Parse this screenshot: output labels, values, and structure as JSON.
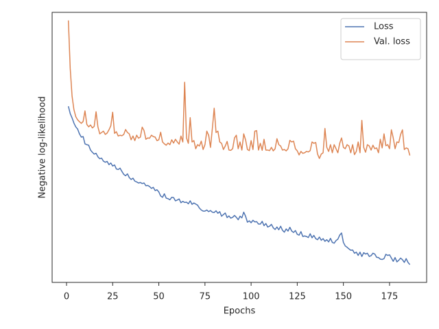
{
  "chart_data": {
    "type": "line",
    "xlabel": "Epochs",
    "ylabel": "Negative log-likelihood",
    "x": [
      1,
      2,
      3,
      4,
      5,
      6,
      7,
      8,
      9,
      10,
      11,
      12,
      13,
      14,
      15,
      16,
      17,
      18,
      19,
      20,
      21,
      22,
      23,
      24,
      25,
      26,
      27,
      28,
      29,
      30,
      31,
      32,
      33,
      34,
      35,
      36,
      37,
      38,
      39,
      40,
      41,
      42,
      43,
      44,
      45,
      46,
      47,
      48,
      49,
      50,
      51,
      52,
      53,
      54,
      55,
      56,
      57,
      58,
      59,
      60,
      61,
      62,
      63,
      64,
      65,
      66,
      67,
      68,
      69,
      70,
      71,
      72,
      73,
      74,
      75,
      76,
      77,
      78,
      79,
      80,
      81,
      82,
      83,
      84,
      85,
      86,
      87,
      88,
      89,
      90,
      91,
      92,
      93,
      94,
      95,
      96,
      97,
      98,
      99,
      100,
      101,
      102,
      103,
      104,
      105,
      106,
      107,
      108,
      109,
      110,
      111,
      112,
      113,
      114,
      115,
      116,
      117,
      118,
      119,
      120,
      121,
      122,
      123,
      124,
      125,
      126,
      127,
      128,
      129,
      130,
      131,
      132,
      133,
      134,
      135,
      136,
      137,
      138,
      139,
      140,
      141,
      142,
      143,
      144,
      145,
      146,
      147,
      148,
      149,
      150,
      151,
      152,
      153,
      154,
      155,
      156,
      157,
      158,
      159,
      160,
      161,
      162,
      163,
      164,
      165,
      166,
      167,
      168,
      169,
      170,
      171,
      172,
      173,
      174,
      175,
      176,
      177,
      178,
      179,
      180,
      181,
      182,
      183,
      184,
      185,
      186
    ],
    "series": [
      {
        "name": "Loss",
        "color": "#4c72b0",
        "values": [
          65.2,
          62.5,
          60.9,
          59.0,
          57.6,
          56.8,
          55.0,
          53.8,
          54.0,
          51.3,
          51.0,
          50.8,
          49.0,
          48.2,
          47.5,
          47.8,
          46.5,
          45.8,
          46.0,
          44.9,
          44.5,
          44.8,
          43.6,
          44.2,
          43.1,
          43.5,
          42.0,
          41.8,
          42.3,
          41.1,
          40.0,
          39.5,
          40.2,
          38.8,
          38.1,
          38.6,
          37.5,
          37.2,
          36.8,
          37.0,
          36.6,
          36.8,
          35.8,
          35.9,
          35.5,
          34.8,
          35.2,
          34.0,
          34.3,
          33.5,
          32.0,
          31.5,
          32.8,
          31.2,
          31.0,
          30.6,
          31.5,
          31.4,
          30.2,
          30.5,
          30.9,
          29.5,
          30.0,
          29.6,
          29.7,
          29.1,
          30.2,
          28.9,
          29.4,
          29.0,
          28.6,
          27.5,
          26.8,
          26.4,
          26.4,
          26.8,
          26.2,
          26.6,
          26.0,
          25.9,
          26.5,
          25.6,
          26.2,
          24.5,
          25.1,
          25.7,
          24.0,
          24.6,
          23.8,
          24.1,
          24.8,
          24.1,
          23.2,
          24.5,
          23.9,
          26.0,
          24.5,
          22.3,
          22.8,
          22.1,
          23.0,
          22.4,
          22.5,
          21.6,
          21.6,
          22.6,
          21.0,
          21.8,
          20.5,
          20.8,
          21.5,
          20.2,
          19.6,
          20.5,
          19.5,
          20.8,
          19.3,
          18.6,
          19.8,
          19.0,
          20.4,
          19.0,
          18.5,
          19.2,
          17.8,
          17.5,
          18.8,
          17.0,
          17.2,
          17.0,
          16.6,
          18.0,
          16.5,
          17.4,
          16.2,
          15.8,
          16.8,
          15.6,
          16.2,
          15.2,
          15.8,
          15.0,
          16.3,
          14.8,
          14.5,
          15.5,
          16.0,
          17.5,
          18.3,
          14.8,
          13.5,
          13.0,
          12.4,
          11.9,
          12.0,
          10.8,
          11.2,
          10.0,
          11.2,
          9.6,
          11.0,
          10.5,
          10.8,
          9.6,
          9.9,
          10.8,
          10.5,
          9.3,
          9.2,
          8.6,
          8.5,
          8.8,
          10.4,
          10.0,
          10.2,
          9.0,
          7.8,
          9.2,
          7.6,
          8.2,
          9.0,
          8.4,
          7.4,
          8.8,
          7.4,
          6.6
        ]
      },
      {
        "name": "Val. loss",
        "color": "#dd8452",
        "values": [
          97.0,
          79.2,
          69.0,
          64.0,
          61.4,
          60.2,
          59.5,
          58.9,
          59.6,
          63.5,
          58.5,
          57.6,
          58.3,
          57.2,
          57.8,
          63.2,
          57.6,
          55.0,
          55.5,
          56.0,
          54.8,
          55.3,
          56.5,
          58.0,
          63.0,
          55.2,
          55.8,
          54.2,
          54.5,
          54.3,
          54.8,
          56.6,
          55.5,
          55.0,
          52.8,
          54.2,
          52.5,
          54.5,
          53.4,
          53.8,
          57.5,
          56.2,
          53.0,
          53.5,
          53.4,
          54.5,
          54.0,
          53.8,
          52.5,
          52.8,
          55.6,
          52.0,
          51.3,
          50.8,
          51.6,
          51.0,
          52.8,
          51.6,
          53.0,
          52.0,
          51.2,
          54.2,
          52.0,
          74.1,
          53.5,
          51.5,
          61.0,
          52.0,
          52.5,
          49.5,
          51.0,
          50.5,
          52.3,
          49.2,
          51.0,
          56.0,
          54.5,
          50.0,
          57.0,
          64.5,
          55.5,
          56.0,
          52.0,
          51.5,
          49.2,
          50.5,
          52.2,
          49.0,
          48.9,
          49.5,
          53.5,
          54.5,
          49.5,
          52.0,
          49.0,
          55.0,
          52.8,
          49.2,
          48.8,
          52.5,
          49.2,
          56.0,
          56.2,
          49.0,
          51.5,
          48.9,
          53.0,
          49.0,
          49.0,
          48.8,
          50.0,
          48.7,
          49.5,
          53.2,
          51.0,
          50.5,
          49.0,
          49.2,
          48.7,
          49.5,
          52.6,
          52.0,
          52.3,
          49.5,
          48.7,
          47.2,
          48.5,
          47.8,
          48.0,
          48.5,
          48.3,
          48.8,
          52.0,
          51.5,
          51.8,
          47.5,
          45.9,
          47.5,
          48.0,
          57.0,
          50.0,
          48.5,
          51.0,
          48.0,
          51.0,
          49.5,
          48.0,
          51.5,
          53.5,
          50.0,
          49.5,
          51.0,
          50.5,
          48.0,
          51.0,
          47.3,
          48.5,
          52.0,
          48.0,
          60.0,
          50.0,
          48.2,
          51.0,
          50.5,
          49.0,
          50.8,
          49.5,
          49.8,
          48.0,
          53.0,
          49.8,
          55.0,
          50.6,
          51.0,
          49.5,
          56.5,
          53.5,
          49.5,
          52.0,
          51.8,
          54.8,
          56.5,
          49.2,
          49.8,
          49.5,
          47.0
        ]
      }
    ],
    "xlim": [
      -7.8,
      195.1
    ],
    "xticks": [
      0,
      25,
      50,
      75,
      100,
      125,
      150,
      175
    ],
    "ylim": [
      0,
      100
    ],
    "legend": "upper right"
  }
}
